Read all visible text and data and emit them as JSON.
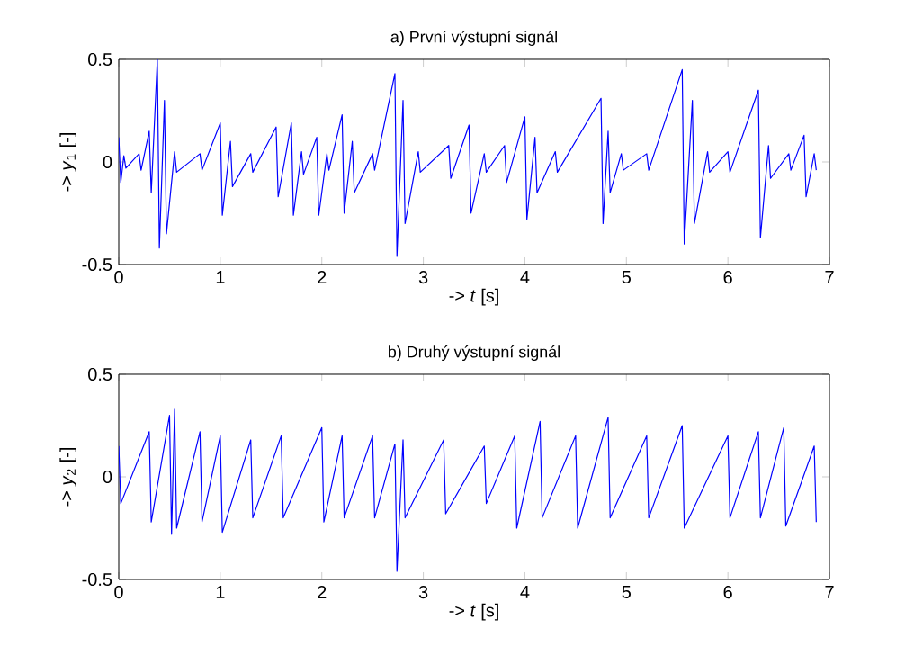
{
  "chart_data": [
    {
      "type": "line",
      "title": "a) První výstupní signál",
      "xlabel": "-> *t* [s]",
      "ylabel": "-> *y*$_{1}$ [-]",
      "xlim": [
        0,
        7
      ],
      "ylim": [
        -0.5,
        0.5
      ],
      "xticks": [
        0,
        1,
        2,
        3,
        4,
        5,
        6,
        7
      ],
      "yticks": [
        -0.5,
        0,
        0.5
      ],
      "series": [
        {
          "color": "#0000ff",
          "x": [
            0,
            0.02,
            0.05,
            0.07,
            0.2,
            0.22,
            0.3,
            0.32,
            0.38,
            0.4,
            0.45,
            0.47,
            0.55,
            0.57,
            0.8,
            0.82,
            1.0,
            1.02,
            1.1,
            1.12,
            1.3,
            1.32,
            1.55,
            1.57,
            1.7,
            1.72,
            1.8,
            1.82,
            1.95,
            1.97,
            2.05,
            2.07,
            2.2,
            2.22,
            2.3,
            2.32,
            2.5,
            2.52,
            2.72,
            2.74,
            2.8,
            2.82,
            2.95,
            2.97,
            3.25,
            3.27,
            3.45,
            3.47,
            3.6,
            3.62,
            3.8,
            3.82,
            4.0,
            4.02,
            4.1,
            4.12,
            4.3,
            4.32,
            4.75,
            4.77,
            4.82,
            4.84,
            4.95,
            4.97,
            5.2,
            5.22,
            5.55,
            5.57,
            5.65,
            5.67,
            5.8,
            5.82,
            6.0,
            6.02,
            6.3,
            6.32,
            6.4,
            6.42,
            6.6,
            6.62,
            6.75,
            6.77,
            6.85,
            6.87
          ],
          "values": [
            0.12,
            -0.1,
            0.03,
            -0.03,
            0.04,
            -0.04,
            0.15,
            -0.15,
            0.5,
            -0.42,
            0.3,
            -0.35,
            0.05,
            -0.05,
            0.04,
            -0.04,
            0.19,
            -0.26,
            0.1,
            -0.12,
            0.04,
            -0.05,
            0.17,
            -0.17,
            0.19,
            -0.26,
            0.05,
            -0.06,
            0.12,
            -0.26,
            0.04,
            -0.04,
            0.23,
            -0.25,
            0.1,
            -0.15,
            0.04,
            -0.04,
            0.43,
            -0.46,
            0.3,
            -0.3,
            0.05,
            -0.05,
            0.08,
            -0.08,
            0.18,
            -0.25,
            0.04,
            -0.05,
            0.08,
            -0.1,
            0.22,
            -0.28,
            0.12,
            -0.15,
            0.05,
            -0.05,
            0.31,
            -0.3,
            0.15,
            -0.15,
            0.04,
            -0.04,
            0.04,
            -0.04,
            0.45,
            -0.4,
            0.3,
            -0.3,
            0.05,
            -0.05,
            0.05,
            -0.05,
            0.35,
            -0.37,
            0.08,
            -0.08,
            0.04,
            -0.04,
            0.13,
            -0.17,
            0.04,
            -0.04
          ]
        }
      ]
    },
    {
      "type": "line",
      "title": "b) Druhý výstupní signál",
      "xlabel": "-> *t* [s]",
      "ylabel": "-> *y*$_{2}$ [-]",
      "xlim": [
        0,
        7
      ],
      "ylim": [
        -0.5,
        0.5
      ],
      "xticks": [
        0,
        1,
        2,
        3,
        4,
        5,
        6,
        7
      ],
      "yticks": [
        -0.5,
        0,
        0.5
      ],
      "series": [
        {
          "color": "#0000ff",
          "x": [
            0,
            0.02,
            0.3,
            0.32,
            0.5,
            0.52,
            0.55,
            0.57,
            0.8,
            0.82,
            1.0,
            1.02,
            1.3,
            1.32,
            1.6,
            1.62,
            2.0,
            2.02,
            2.2,
            2.22,
            2.5,
            2.52,
            2.72,
            2.74,
            2.8,
            2.82,
            3.2,
            3.22,
            3.6,
            3.62,
            3.9,
            3.92,
            4.15,
            4.17,
            4.5,
            4.52,
            4.82,
            4.84,
            5.2,
            5.22,
            5.55,
            5.57,
            6.0,
            6.02,
            6.3,
            6.32,
            6.55,
            6.57,
            6.85,
            6.87
          ],
          "values": [
            0.15,
            -0.13,
            0.22,
            -0.22,
            0.3,
            -0.28,
            0.33,
            -0.25,
            0.22,
            -0.22,
            0.2,
            -0.27,
            0.18,
            -0.2,
            0.2,
            -0.2,
            0.24,
            -0.22,
            0.2,
            -0.2,
            0.2,
            -0.2,
            0.16,
            -0.46,
            0.18,
            -0.2,
            0.18,
            -0.18,
            0.15,
            -0.13,
            0.2,
            -0.25,
            0.27,
            -0.2,
            0.2,
            -0.25,
            0.29,
            -0.2,
            0.2,
            -0.2,
            0.25,
            -0.25,
            0.2,
            -0.2,
            0.22,
            -0.2,
            0.24,
            -0.24,
            0.15,
            -0.22
          ]
        }
      ]
    }
  ]
}
